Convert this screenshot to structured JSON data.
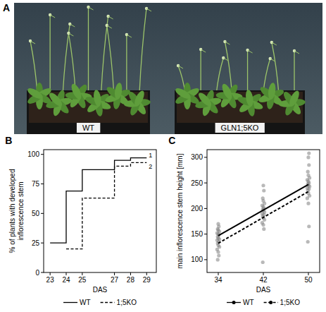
{
  "photo": {
    "panel": "A",
    "labels": [
      "WT",
      "GLN1;5KO"
    ]
  },
  "chart_data": [
    {
      "panel": "B",
      "type": "step",
      "x_label": "DAS",
      "y_label": "% of plants with developed inflorescence stem",
      "x": [
        23,
        24,
        25,
        27,
        28,
        29
      ],
      "xlim": [
        22.6,
        29.6
      ],
      "xticks": [
        23,
        24,
        25,
        27,
        28,
        29
      ],
      "ylim": [
        0,
        104
      ],
      "yticks": [
        0,
        25,
        50,
        75,
        100
      ],
      "series": [
        {
          "name": "WT",
          "color": "#000000",
          "line_style": "solid",
          "values": [
            25,
            69,
            87,
            95,
            97,
            97
          ]
        },
        {
          "name": "1;5KO",
          "color": "#000000",
          "line_style": "dashed",
          "values": [
            null,
            20,
            63,
            90,
            93,
            93
          ]
        }
      ],
      "annotations": [
        "1",
        "2"
      ],
      "legend": "bottom",
      "grid": false
    },
    {
      "panel": "C",
      "type": "scatter",
      "x_label": "DAS",
      "y_label": "main inflorescence stem height [mm]",
      "xlim": [
        32,
        52
      ],
      "xticks": [
        34,
        42,
        50
      ],
      "ylim": [
        75,
        315
      ],
      "yticks": [
        100,
        150,
        200,
        250,
        300
      ],
      "points": {
        "color": "#808080",
        "x": [
          33.9,
          34.1,
          34.0,
          33.8,
          34.2,
          34.0,
          33.9,
          34.1,
          33.8,
          34.2,
          34.0,
          33.9,
          34.1,
          34.0,
          33.8,
          34.2,
          34.0,
          33.9,
          34.1,
          34.0,
          41.9,
          42.1,
          42.0,
          41.8,
          42.2,
          42.0,
          41.9,
          42.1,
          41.8,
          42.2,
          42.0,
          41.9,
          42.1,
          42.0,
          41.8,
          42.2,
          42.0,
          41.9,
          42.1,
          42.0,
          49.9,
          50.1,
          50.0,
          49.8,
          50.2,
          50.0,
          49.9,
          50.1,
          49.8,
          50.2,
          50.0,
          49.9,
          50.1,
          50.0,
          49.8,
          50.2,
          50.0,
          49.9,
          50.1,
          50.0,
          50.1
        ],
        "values": [
          100,
          108,
          115,
          120,
          125,
          128,
          132,
          135,
          138,
          140,
          142,
          145,
          148,
          150,
          152,
          155,
          158,
          160,
          165,
          170,
          95,
          160,
          168,
          172,
          178,
          182,
          185,
          188,
          190,
          193,
          196,
          198,
          200,
          203,
          206,
          210,
          215,
          220,
          235,
          245,
          135,
          165,
          210,
          220,
          225,
          230,
          235,
          238,
          240,
          243,
          245,
          248,
          250,
          253,
          256,
          260,
          265,
          272,
          285,
          300,
          308
        ]
      },
      "series": [
        {
          "name": "WT",
          "type": "line",
          "color": "#000000",
          "line_style": "solid",
          "marker": "circle",
          "x": [
            34,
            50
          ],
          "values": [
            147,
            247
          ]
        },
        {
          "name": "1;5KO",
          "type": "line",
          "color": "#000000",
          "line_style": "dashed",
          "marker": "circle",
          "x": [
            34,
            50
          ],
          "values": [
            132,
            233
          ]
        }
      ],
      "legend": "bottom",
      "grid": false
    }
  ]
}
